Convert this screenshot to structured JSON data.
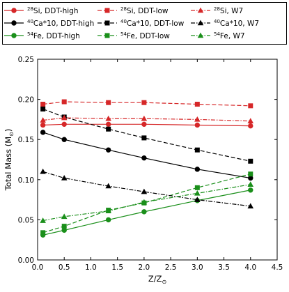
{
  "chart_data": {
    "type": "line",
    "xlabel": "Z/Z",
    "xlabel_sub": "⊙",
    "ylabel": "Total Mass (M",
    "ylabel_sub": "⊙",
    "ylabel_close": ")",
    "xlim": [
      0.0,
      4.5
    ],
    "ylim": [
      0.0,
      0.25
    ],
    "xticks": [
      0.0,
      0.5,
      1.0,
      1.5,
      2.0,
      2.5,
      3.0,
      3.5,
      4.0,
      4.5
    ],
    "xtick_labels": [
      "0.0",
      "0.5",
      "1.0",
      "1.5",
      "2.0",
      "2.5",
      "3.0",
      "3.5",
      "4.0",
      "4.5"
    ],
    "yticks": [
      0.0,
      0.05,
      0.1,
      0.15,
      0.2,
      0.25
    ],
    "ytick_labels": [
      "0.00",
      "0.05",
      "0.10",
      "0.15",
      "0.20",
      "0.25"
    ],
    "grid": false,
    "legend_placement": "top, above plot",
    "x": [
      0.1,
      0.5,
      1.33,
      2.0,
      3.0,
      4.0
    ],
    "series": [
      {
        "iso": "28",
        "label": "Si, DDT-high",
        "color": "#d62728",
        "dash": "solid",
        "marker": "circle",
        "values": [
          0.168,
          0.169,
          0.169,
          0.169,
          0.168,
          0.167
        ]
      },
      {
        "iso": "40",
        "label": "Ca*10, DDT-high",
        "color": "#000000",
        "dash": "solid",
        "marker": "circle",
        "values": [
          0.159,
          0.15,
          0.137,
          0.127,
          0.113,
          0.102
        ]
      },
      {
        "iso": "54",
        "label": "Fe, DDT-high",
        "color": "#1a8f1a",
        "dash": "solid",
        "marker": "circle",
        "values": [
          0.031,
          0.037,
          0.05,
          0.06,
          0.074,
          0.087
        ]
      },
      {
        "iso": "28",
        "label": "Si, DDT-low",
        "color": "#d62728",
        "dash": "dashed",
        "marker": "square",
        "values": [
          0.194,
          0.197,
          0.196,
          0.196,
          0.194,
          0.192
        ]
      },
      {
        "iso": "40",
        "label": "Ca*10, DDT-low",
        "color": "#000000",
        "dash": "dashed",
        "marker": "square",
        "values": [
          0.188,
          0.178,
          0.163,
          0.152,
          0.137,
          0.123
        ]
      },
      {
        "iso": "54",
        "label": "Fe, DDT-low",
        "color": "#1a8f1a",
        "dash": "dashed",
        "marker": "square",
        "values": [
          0.034,
          0.042,
          0.062,
          0.071,
          0.09,
          0.107
        ]
      },
      {
        "iso": "28",
        "label": "Si, W7",
        "color": "#d62728",
        "dash": "dashdot",
        "marker": "triangle",
        "values": [
          0.174,
          0.177,
          0.176,
          0.176,
          0.175,
          0.173
        ]
      },
      {
        "iso": "40",
        "label": "Ca*10, W7",
        "color": "#000000",
        "dash": "dashdot",
        "marker": "triangle",
        "values": [
          0.11,
          0.102,
          0.092,
          0.085,
          0.075,
          0.067
        ]
      },
      {
        "iso": "54",
        "label": "Fe, W7",
        "color": "#1a8f1a",
        "dash": "dashdot",
        "marker": "triangle",
        "values": [
          0.049,
          0.054,
          0.061,
          0.072,
          0.083,
          0.094
        ]
      }
    ]
  }
}
